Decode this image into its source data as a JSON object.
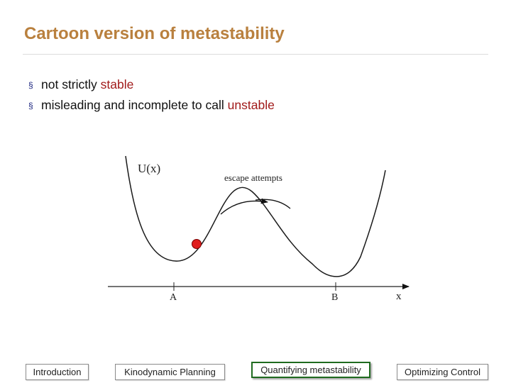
{
  "slide": {
    "title": "Cartoon version of metastability",
    "bullets": [
      {
        "text": "not strictly ",
        "highlight": "stable"
      },
      {
        "text": "misleading and incomplete to call ",
        "highlight": "unstable"
      }
    ],
    "bullet_glyph": "§",
    "accent_color": "#b9803e",
    "highlight_color": "#a11a1a"
  },
  "figure": {
    "y_label": "U(x)",
    "annotation": "escape attempts",
    "x_label": "x",
    "tick_a": "A",
    "tick_b": "B"
  },
  "nav": {
    "items": [
      {
        "label": "Introduction",
        "active": false
      },
      {
        "label": "Kinodynamic Planning",
        "active": false
      },
      {
        "label": "Quantifying metastability",
        "active": true
      },
      {
        "label": "Optimizing Control",
        "active": false
      }
    ]
  }
}
